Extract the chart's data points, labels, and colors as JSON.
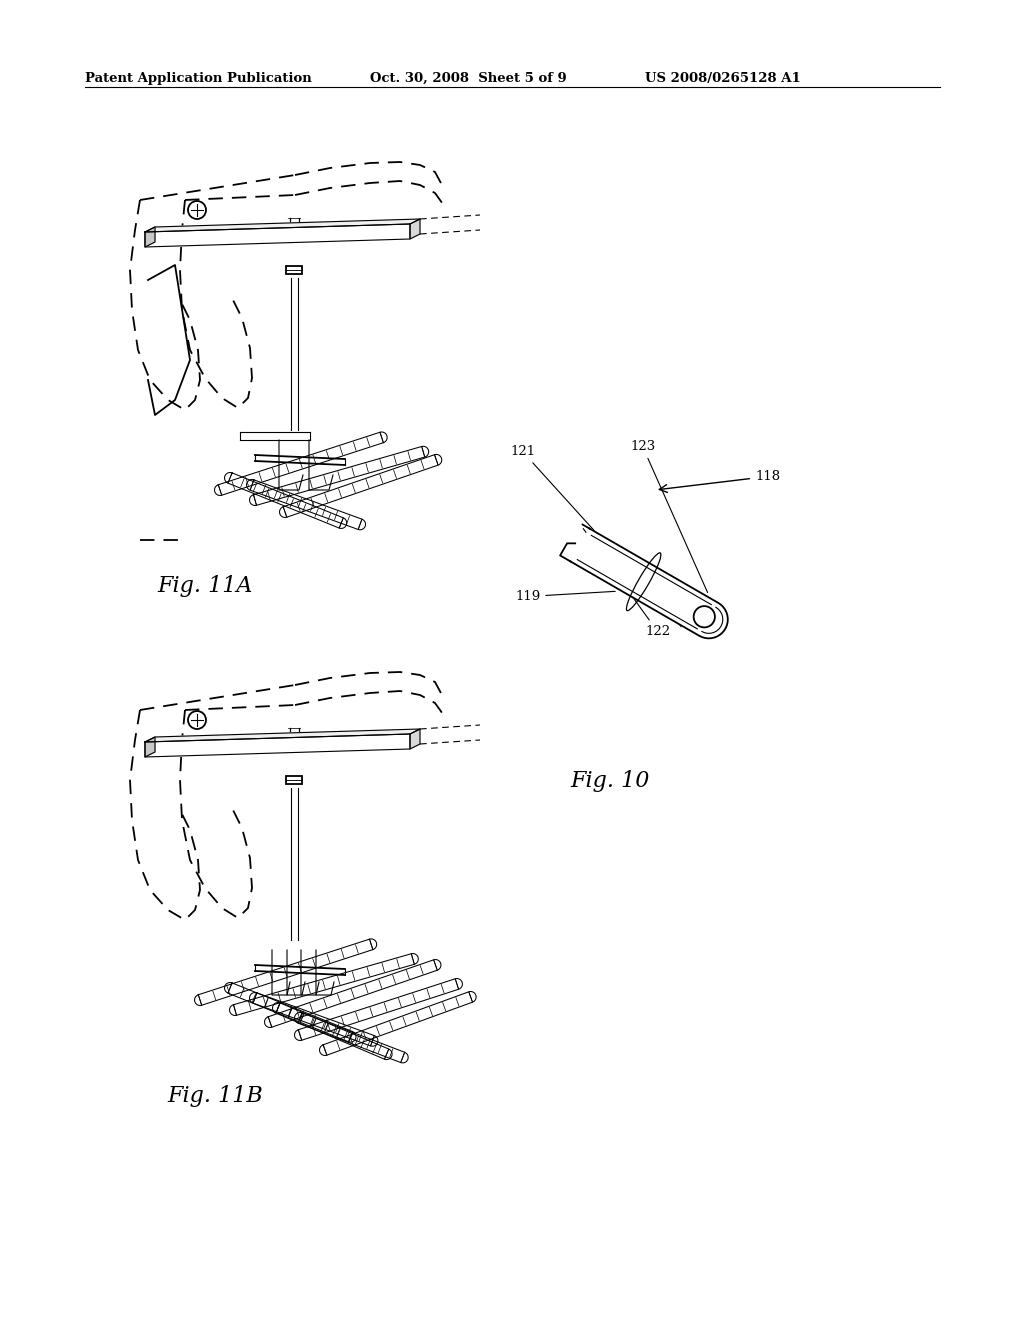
{
  "bg_color": "#ffffff",
  "header_left": "Patent Application Publication",
  "header_center": "Oct. 30, 2008  Sheet 5 of 9",
  "header_right": "US 2008/0265128 A1",
  "fig11a_label": "Fig. 11A",
  "fig11b_label": "Fig. 11B",
  "fig10_label": "Fig. 10",
  "ref_118": "118",
  "ref_119": "119",
  "ref_121": "121",
  "ref_122": "122",
  "ref_123": "123",
  "line_color": "#000000",
  "lw_main": 1.3,
  "lw_thin": 0.8,
  "lw_thick": 1.8
}
